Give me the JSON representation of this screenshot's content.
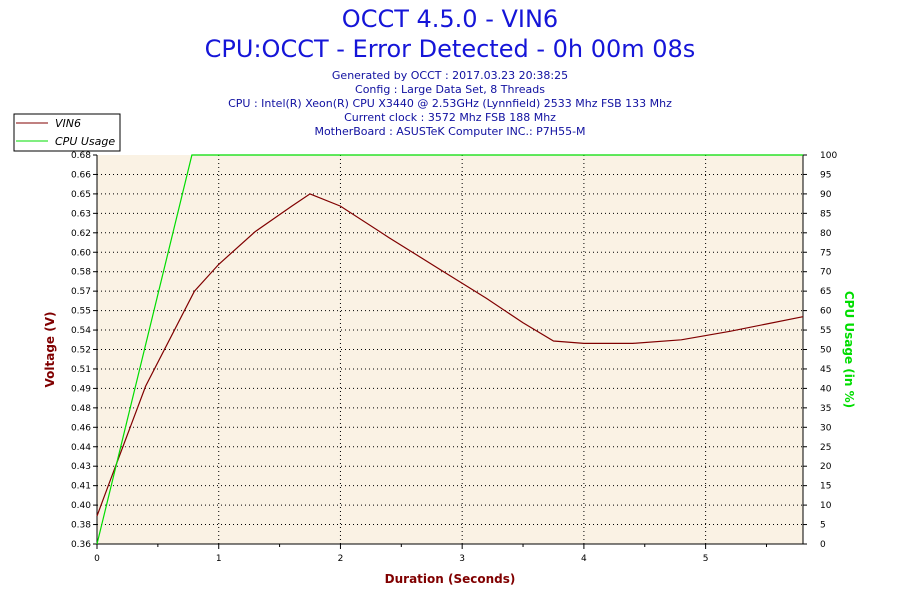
{
  "header": {
    "title": "OCCT 4.5.0 - VIN6",
    "subtitle": "CPU:OCCT - Error Detected - 0h 00m 08s",
    "info_lines": [
      "Generated by OCCT : 2017.03.23 20:38:25",
      "Config : Large Data Set, 8 Threads",
      "CPU : Intel(R) Xeon(R) CPU X3440 @ 2.53GHz (Lynnfield) 2533 Mhz FSB 133 Mhz",
      "Current clock : 3572 Mhz FSB 188 Mhz",
      "MotherBoard : ASUSTeK Computer INC.: P7H55-M"
    ]
  },
  "colors": {
    "voltage": "#800000",
    "cpu_usage": "#00dd00",
    "plot_bg": "#faf2e4",
    "grid": "#000000",
    "title": "#1515d8"
  },
  "chart_data": {
    "type": "line",
    "xlabel": "Duration (Seconds)",
    "ylabel": "Voltage (V)",
    "y2label": "CPU Usage (in %)",
    "xlim": [
      0,
      5.8
    ],
    "ylim": [
      0.36,
      0.68
    ],
    "y2lim": [
      0,
      100
    ],
    "grid": true,
    "legend_position": "top-left",
    "x_ticks": [
      0,
      1,
      2,
      3,
      4,
      5
    ],
    "y_ticks": [
      "0.36",
      "0.38",
      "0.40",
      "0.41",
      "0.43",
      "0.44",
      "0.46",
      "0.48",
      "0.49",
      "0.51",
      "0.52",
      "0.54",
      "0.55",
      "0.57",
      "0.58",
      "0.60",
      "0.62",
      "0.63",
      "0.65",
      "0.66",
      "0.68"
    ],
    "y2_ticks": [
      0,
      5,
      10,
      15,
      20,
      25,
      30,
      35,
      40,
      45,
      50,
      55,
      60,
      65,
      70,
      75,
      80,
      85,
      90,
      95,
      100
    ],
    "series": [
      {
        "name": "VIN6",
        "axis": "left",
        "x": [
          0,
          0.1,
          0.4,
          0.8,
          1.0,
          1.3,
          1.6,
          1.75,
          2.0,
          2.4,
          2.8,
          3.2,
          3.5,
          3.75,
          4.0,
          4.4,
          4.8,
          5.2,
          5.5,
          5.8
        ],
        "y": [
          0.383,
          0.41,
          0.49,
          0.568,
          0.59,
          0.617,
          0.638,
          0.648,
          0.638,
          0.612,
          0.587,
          0.562,
          0.542,
          0.527,
          0.525,
          0.525,
          0.528,
          0.535,
          0.541,
          0.547
        ]
      },
      {
        "name": "CPU Usage",
        "axis": "right",
        "x": [
          0,
          0.78,
          5.8
        ],
        "y": [
          0,
          100,
          100
        ]
      }
    ]
  }
}
